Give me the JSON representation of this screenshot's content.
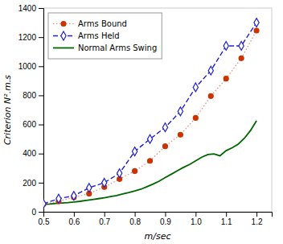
{
  "chart_data": {
    "type": "line",
    "xlabel": "m/sec",
    "ylabel": "Criterion N².m.s",
    "xlim": [
      0.5,
      1.25
    ],
    "ylim": [
      0,
      1400
    ],
    "xticks": [
      0.5,
      0.6,
      0.7,
      0.8,
      0.9,
      {
        "value": 1.0,
        "label": "1.0"
      },
      1.1,
      1.2
    ],
    "yticks": [
      0,
      200,
      400,
      600,
      800,
      1000,
      1200,
      1400
    ],
    "grid": false,
    "legend": "upper left",
    "series": [
      {
        "name": "Arms Bound",
        "color": "#cc3300",
        "marker": "circle",
        "line_style": "dotted",
        "x": [
          0.5,
          0.55,
          0.6,
          0.65,
          0.7,
          0.75,
          0.8,
          0.85,
          0.9,
          0.95,
          1.0,
          1.05,
          1.1,
          1.15,
          1.2
        ],
        "values": [
          52,
          72,
          100,
          125,
          170,
          225,
          280,
          350,
          450,
          530,
          645,
          795,
          915,
          1055,
          1245
        ]
      },
      {
        "name": "Arms Held",
        "color": "#2020cc",
        "marker": "diamond",
        "line_style": "dashed",
        "x": [
          0.5,
          0.55,
          0.6,
          0.65,
          0.7,
          0.75,
          0.8,
          0.85,
          0.9,
          0.95,
          1.0,
          1.05,
          1.1,
          1.15,
          1.2
        ],
        "values": [
          55,
          90,
          110,
          165,
          200,
          265,
          415,
          500,
          580,
          690,
          855,
          970,
          1140,
          1140,
          1300
        ]
      },
      {
        "name": "Normal Arms Swing",
        "color": "#006600",
        "marker": "none",
        "line_style": "solid",
        "x": [
          0.5,
          0.52,
          0.54,
          0.56,
          0.58,
          0.6,
          0.62,
          0.64,
          0.66,
          0.68,
          0.7,
          0.72,
          0.74,
          0.76,
          0.78,
          0.8,
          0.82,
          0.84,
          0.86,
          0.88,
          0.9,
          0.92,
          0.94,
          0.96,
          0.98,
          1.0,
          1.02,
          1.04,
          1.06,
          1.08,
          1.1,
          1.12,
          1.14,
          1.16,
          1.18,
          1.2
        ],
        "values": [
          50,
          53,
          57,
          60,
          63,
          67,
          72,
          78,
          84,
          90,
          96,
          104,
          112,
          122,
          132,
          143,
          155,
          172,
          190,
          210,
          235,
          258,
          282,
          305,
          325,
          350,
          375,
          393,
          398,
          385,
          420,
          440,
          465,
          505,
          558,
          625
        ]
      }
    ]
  }
}
